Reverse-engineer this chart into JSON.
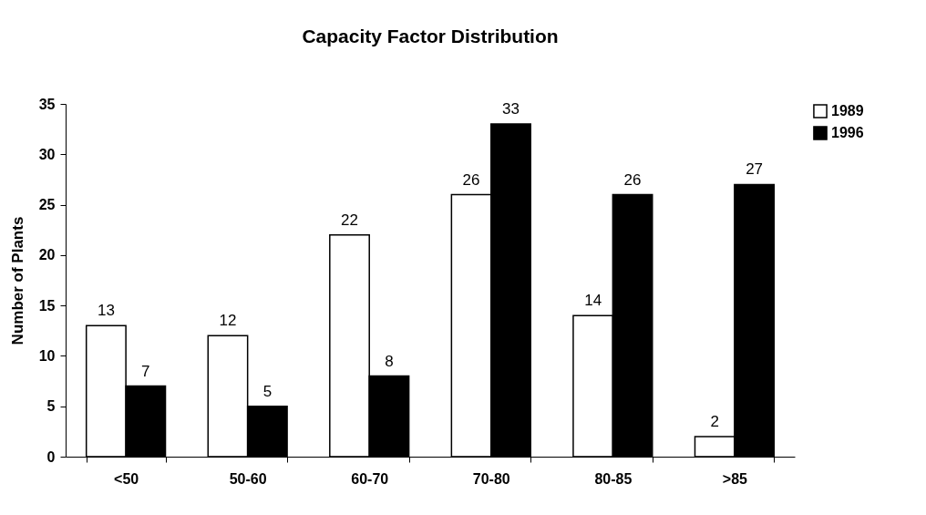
{
  "chart_data": {
    "type": "bar",
    "title": "Capacity Factor Distribution",
    "ylabel": "Number of Plants",
    "categories": [
      "<50",
      "50-60",
      "60-70",
      "70-80",
      "80-85",
      ">85"
    ],
    "series": [
      {
        "name": "1989",
        "color": "#ffffff",
        "values": [
          13,
          12,
          22,
          26,
          14,
          2
        ]
      },
      {
        "name": "1996",
        "color": "#000000",
        "values": [
          7,
          5,
          8,
          33,
          26,
          27
        ]
      }
    ],
    "ylim": [
      0,
      35
    ],
    "yticks": [
      0,
      5,
      10,
      15,
      20,
      25,
      30,
      35
    ],
    "grid": false,
    "legend": "right",
    "data_labels": true
  }
}
